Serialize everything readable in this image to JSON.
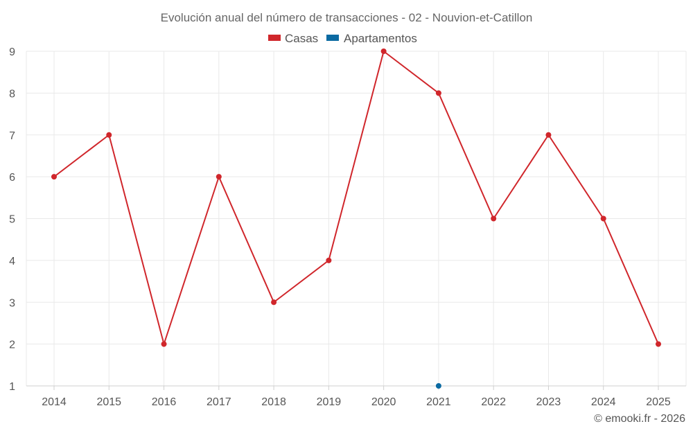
{
  "chart_data": {
    "type": "line",
    "title": "Evolución anual del número de transacciones - 02 - Nouvion-et-Catillon",
    "categories": [
      "2014",
      "2015",
      "2016",
      "2017",
      "2018",
      "2019",
      "2020",
      "2021",
      "2022",
      "2023",
      "2024",
      "2025"
    ],
    "series": [
      {
        "name": "Casas",
        "color": "#d0262b",
        "values": [
          6,
          7,
          2,
          6,
          3,
          4,
          9,
          8,
          5,
          7,
          5,
          2
        ]
      },
      {
        "name": "Apartamentos",
        "color": "#0b6aa2",
        "values": [
          null,
          null,
          null,
          null,
          null,
          null,
          null,
          1,
          null,
          null,
          null,
          null
        ]
      }
    ],
    "ylim": [
      1,
      9
    ],
    "yticks": [
      "1",
      "2",
      "3",
      "4",
      "5",
      "6",
      "7",
      "8",
      "9"
    ],
    "xlabel": "",
    "ylabel": "",
    "grid": true,
    "legend_position": "top-center"
  },
  "credit": "© emooki.fr - 2026"
}
